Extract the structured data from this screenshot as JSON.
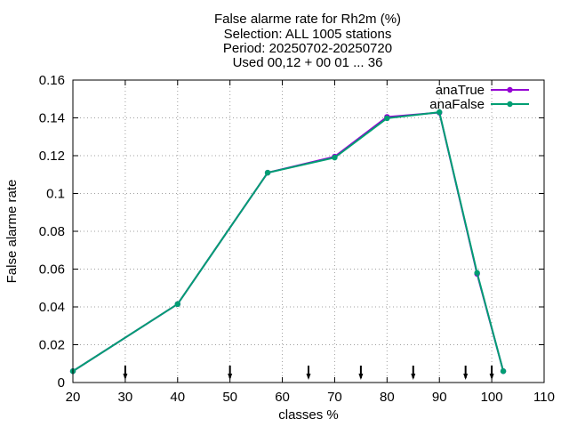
{
  "chart_data": {
    "type": "line",
    "title_lines": [
      "False alarme rate  for Rh2m (%)",
      "Selection: ALL   1005 stations",
      "Period: 20250702-20250720",
      "Used 00,12 + 00 01 ... 36"
    ],
    "xlabel": "classes %",
    "ylabel": "False alarme rate",
    "xlim": [
      20,
      110
    ],
    "ylim": [
      0,
      0.16
    ],
    "x_ticks": [
      "20",
      "30",
      "40",
      "50",
      "60",
      "70",
      "80",
      "90",
      "100",
      "110"
    ],
    "y_ticks": [
      "0",
      "0.02",
      "0.04",
      "0.06",
      "0.08",
      "0.1",
      "0.12",
      "0.14",
      "0.16"
    ],
    "grid": true,
    "legend_position": "top-right",
    "series": [
      {
        "name": "anaTrue",
        "color": "#9400d3",
        "x": [
          20,
          40,
          57.2,
          70,
          80,
          90,
          97.2,
          102.2
        ],
        "y": [
          0.006,
          0.0415,
          0.111,
          0.1195,
          0.1405,
          0.1428,
          0.0575,
          0.006
        ]
      },
      {
        "name": "anaFalse",
        "color": "#009e73",
        "x": [
          20,
          40,
          57.2,
          70,
          80,
          90,
          97.2,
          102.2
        ],
        "y": [
          0.006,
          0.0415,
          0.111,
          0.119,
          0.1398,
          0.143,
          0.058,
          0.006
        ]
      }
    ],
    "markers_x": [
      30,
      50,
      65,
      75,
      85,
      95,
      100
    ]
  }
}
